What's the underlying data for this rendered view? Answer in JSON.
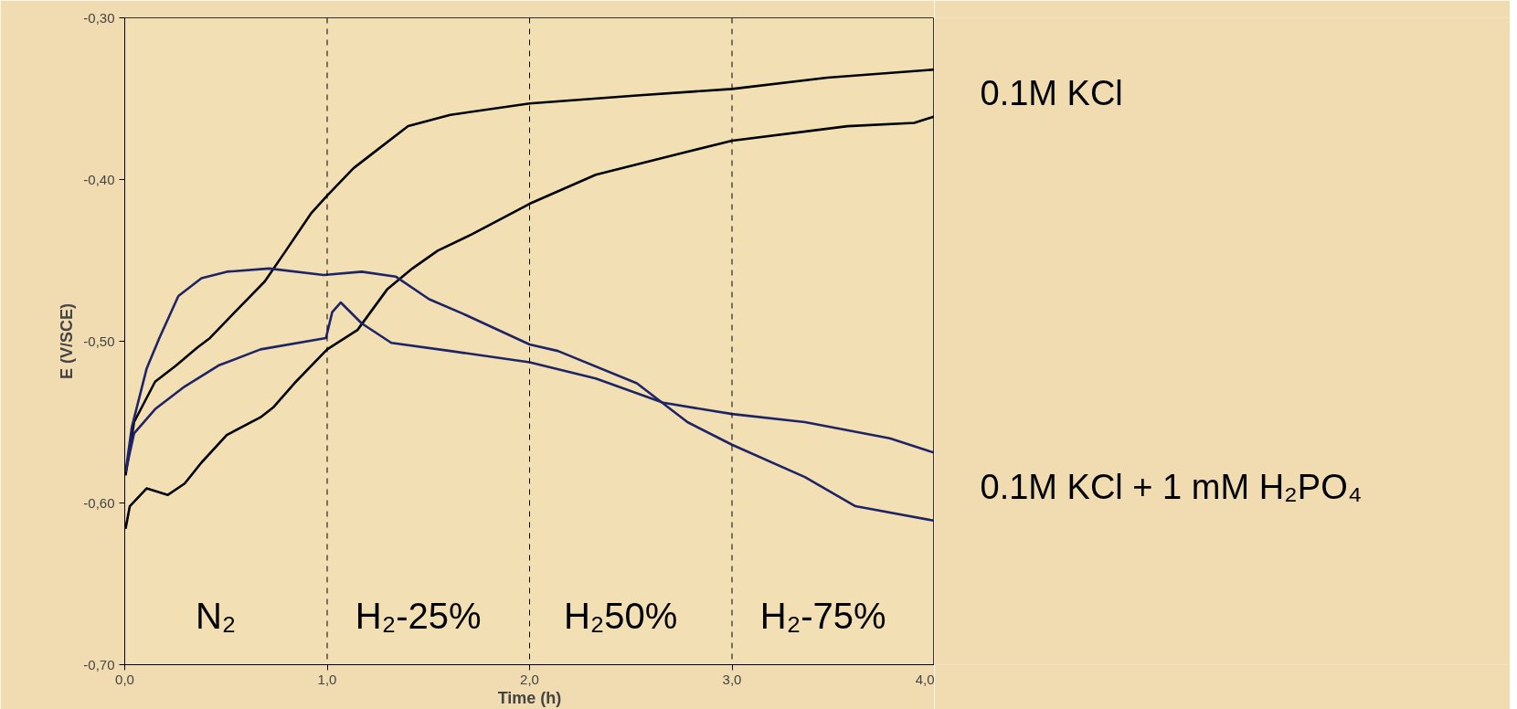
{
  "chart_data": {
    "type": "line",
    "xlabel": "Time (h)",
    "ylabel": "E (V/SCE)",
    "xlim": [
      0,
      4
    ],
    "ylim": [
      -0.7,
      -0.3
    ],
    "xticks": [
      {
        "value": 0,
        "label": "0,0"
      },
      {
        "value": 1,
        "label": "1,0"
      },
      {
        "value": 2,
        "label": "2,0"
      },
      {
        "value": 3,
        "label": "3,0"
      },
      {
        "value": 4,
        "label": "4,0"
      }
    ],
    "yticks": [
      {
        "value": -0.7,
        "label": "-0,70"
      },
      {
        "value": -0.6,
        "label": "-0,60"
      },
      {
        "value": -0.5,
        "label": "-0,50"
      },
      {
        "value": -0.4,
        "label": "-0,40"
      },
      {
        "value": -0.3,
        "label": "-0,30"
      }
    ],
    "grid": false,
    "line_style": "solid",
    "series": [
      {
        "name": "0.1M KCl",
        "color": "#000000",
        "x": [
          0.004,
          0.046,
          0.15,
          0.254,
          0.358,
          0.421,
          0.567,
          0.692,
          0.796,
          0.92,
          1.0,
          1.13,
          1.254,
          1.4,
          1.608,
          2.0,
          2.53,
          3.0,
          3.47,
          4.0
        ],
        "values": [
          -0.583,
          -0.55,
          -0.525,
          -0.515,
          -0.504,
          -0.498,
          -0.479,
          -0.463,
          -0.444,
          -0.421,
          -0.41,
          -0.393,
          -0.381,
          -0.367,
          -0.36,
          -0.353,
          -0.348,
          -0.344,
          -0.337,
          -0.332
        ]
      },
      {
        "color": "#000000",
        "x": [
          0.004,
          0.025,
          0.108,
          0.213,
          0.296,
          0.379,
          0.504,
          0.671,
          0.733,
          0.838,
          1.0,
          1.15,
          1.296,
          1.421,
          1.546,
          1.713,
          2.0,
          2.327,
          2.74,
          3.0,
          3.57,
          3.9,
          4.0
        ],
        "values": [
          -0.616,
          -0.602,
          -0.591,
          -0.595,
          -0.588,
          -0.575,
          -0.558,
          -0.547,
          -0.541,
          -0.526,
          -0.505,
          -0.493,
          -0.468,
          -0.455,
          -0.444,
          -0.434,
          -0.415,
          -0.397,
          -0.384,
          -0.376,
          -0.367,
          -0.365,
          -0.361
        ]
      },
      {
        "name": "0.1M KCl + 1 mM H₂PO₄",
        "color": "#1f2466",
        "x": [
          0.004,
          0.035,
          0.108,
          0.171,
          0.265,
          0.379,
          0.504,
          0.713,
          0.983,
          1.171,
          1.338,
          1.504,
          1.671,
          2.0,
          2.14,
          2.53,
          2.78,
          3.0,
          3.36,
          3.61,
          4.0
        ],
        "values": [
          -0.581,
          -0.553,
          -0.517,
          -0.498,
          -0.472,
          -0.461,
          -0.457,
          -0.455,
          -0.459,
          -0.457,
          -0.46,
          -0.474,
          -0.483,
          -0.502,
          -0.506,
          -0.526,
          -0.55,
          -0.564,
          -0.584,
          -0.602,
          -0.611
        ]
      },
      {
        "color": "#1f2466",
        "x": [
          0.004,
          0.046,
          0.15,
          0.296,
          0.463,
          0.671,
          0.994,
          1.025,
          1.067,
          1.171,
          1.317,
          1.608,
          2.0,
          2.327,
          2.66,
          3.0,
          3.36,
          3.78,
          4.0
        ],
        "values": [
          -0.581,
          -0.557,
          -0.542,
          -0.528,
          -0.515,
          -0.505,
          -0.498,
          -0.482,
          -0.476,
          -0.489,
          -0.501,
          -0.506,
          -0.513,
          -0.523,
          -0.538,
          -0.545,
          -0.55,
          -0.56,
          -0.569
        ]
      }
    ],
    "ref_lines": [
      {
        "axis": "x",
        "value": 1,
        "line_style": "dashed",
        "color": "#000000"
      },
      {
        "axis": "x",
        "value": 2,
        "line_style": "dashed",
        "color": "#000000"
      },
      {
        "axis": "x",
        "value": 3,
        "line_style": "dashed",
        "color": "#000000"
      }
    ],
    "annotations": [
      "N₂",
      "H₂-25%",
      "H₂50%",
      "H₂-75%"
    ]
  }
}
